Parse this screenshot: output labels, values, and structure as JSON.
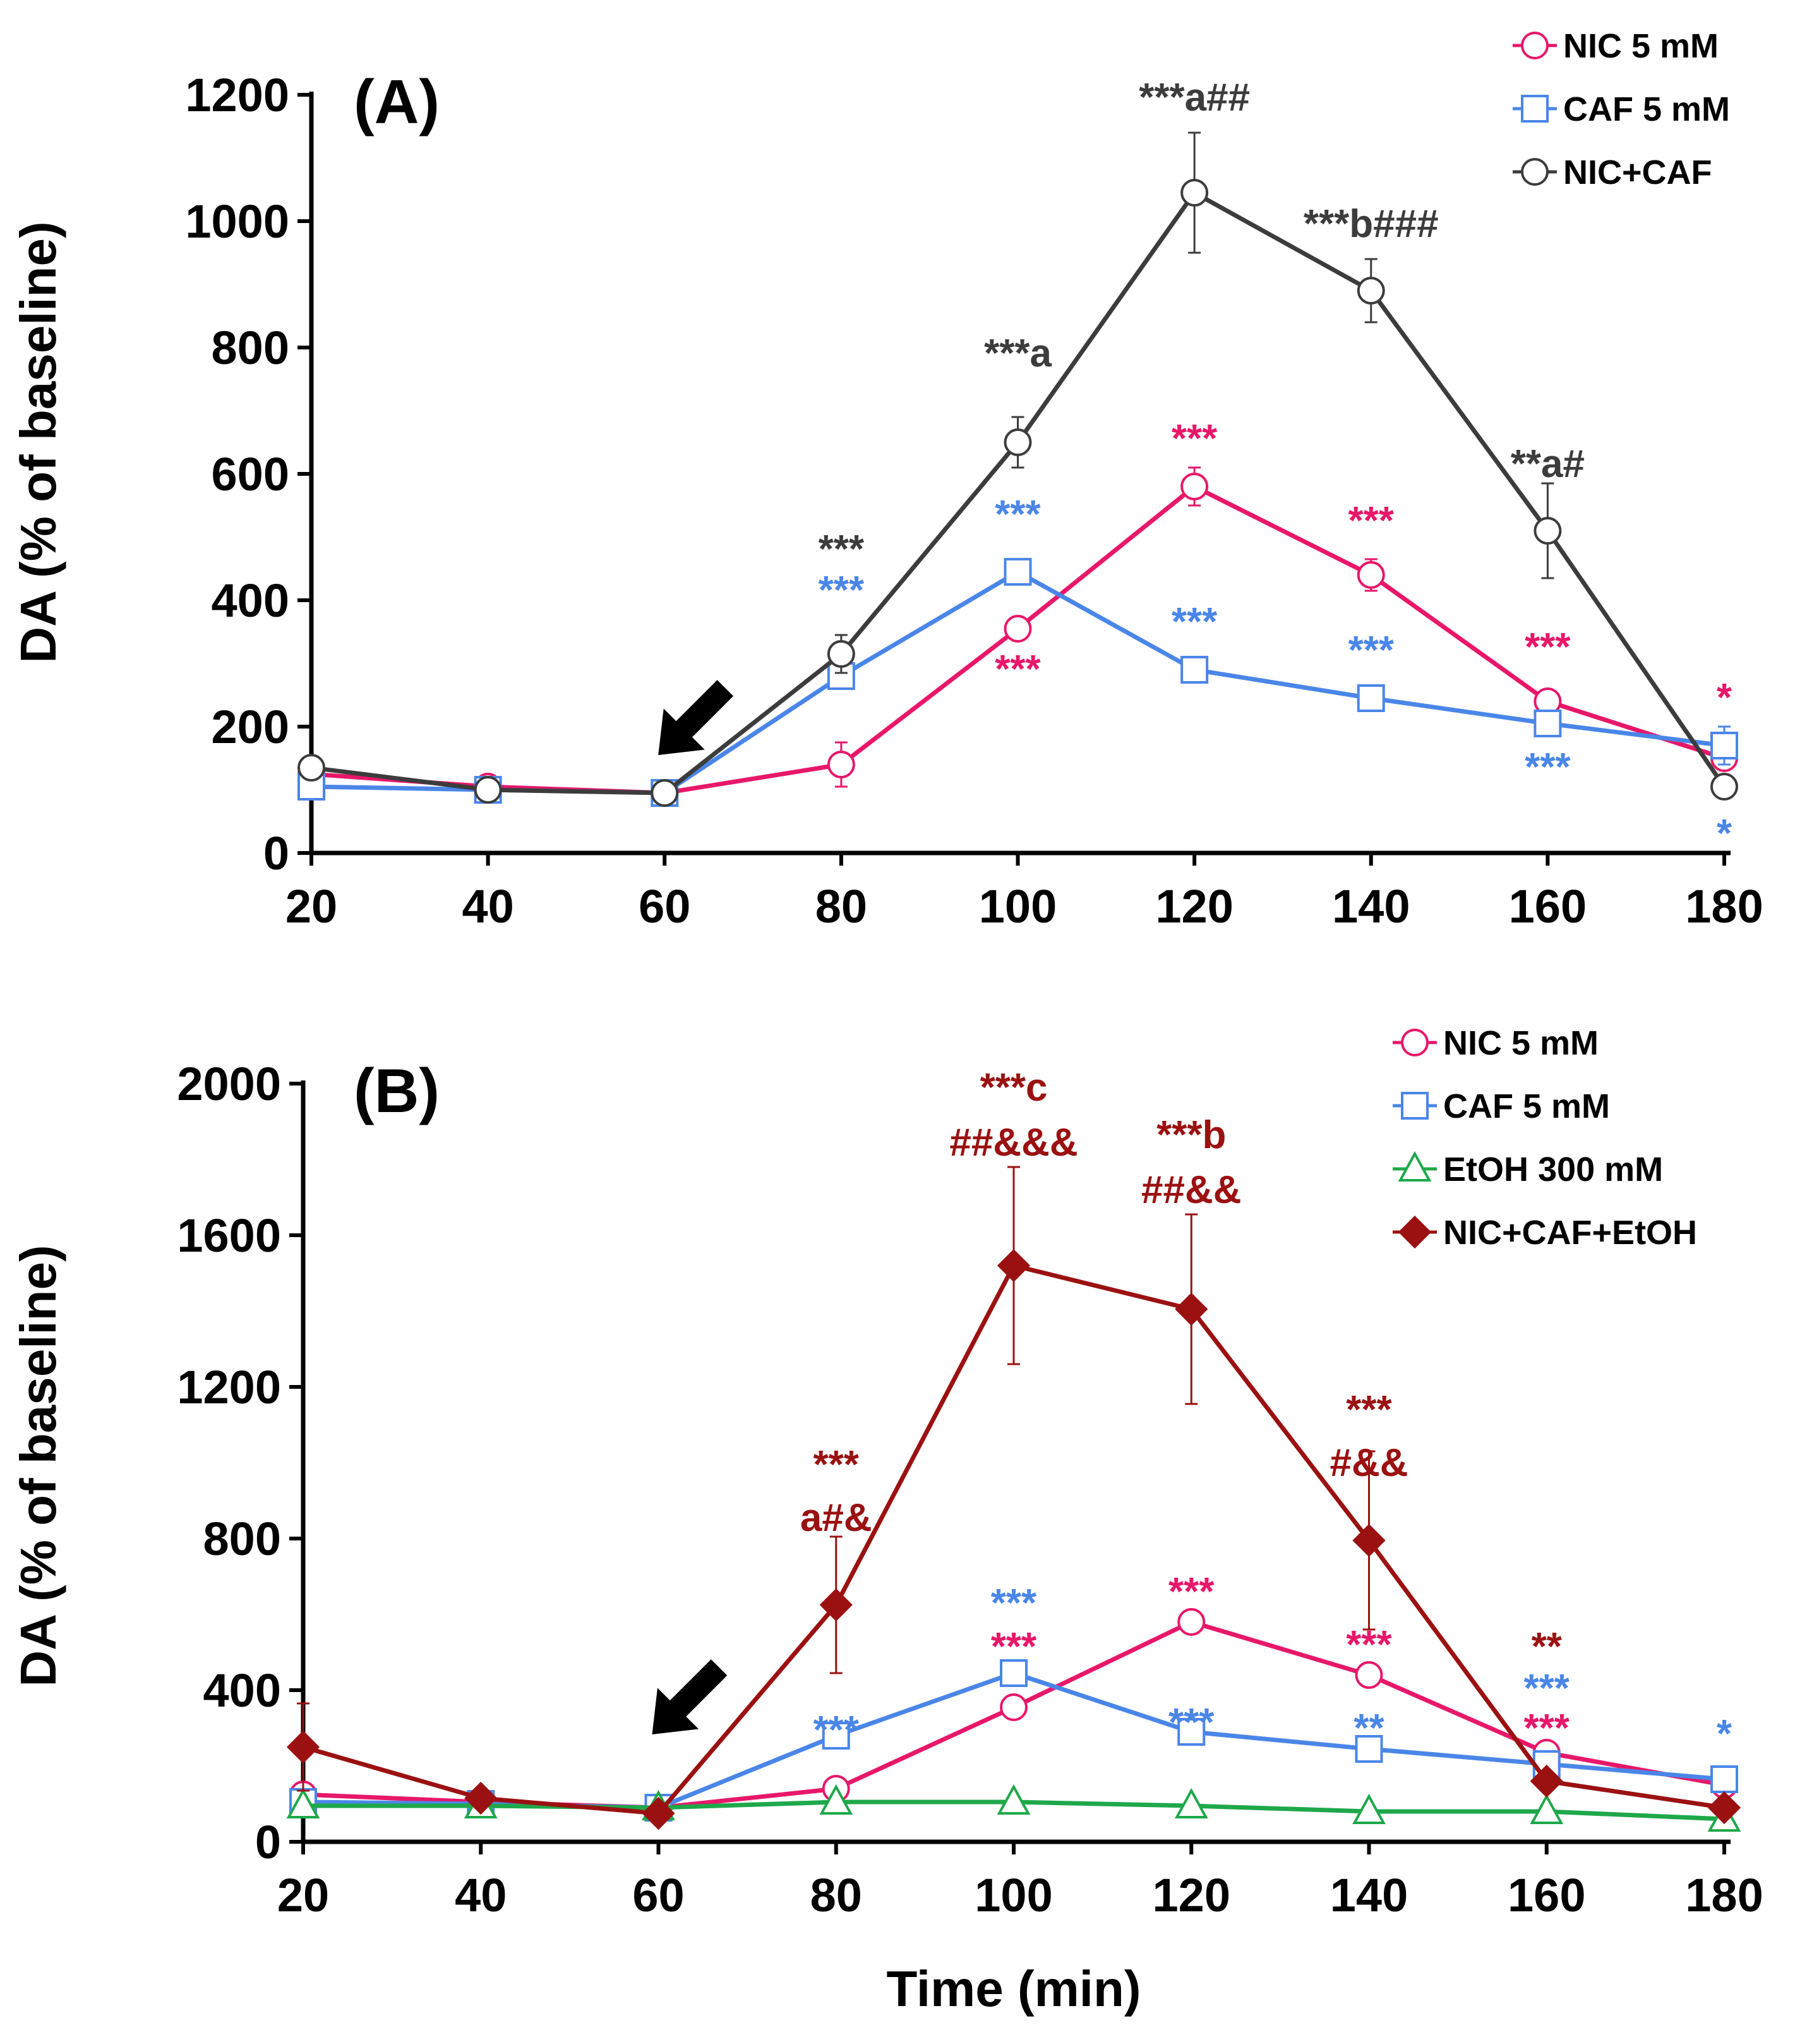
{
  "chart_data": [
    {
      "type": "line",
      "panel_label": "(A)",
      "xlabel": "",
      "ylabel": "DA (% of baseline)",
      "x": [
        20,
        40,
        60,
        80,
        100,
        120,
        140,
        160,
        180
      ],
      "xticks": [
        "20",
        "40",
        "60",
        "80",
        "100",
        "120",
        "140",
        "160",
        "180"
      ],
      "xlim": [
        20,
        180
      ],
      "yticks": [
        "0",
        "200",
        "400",
        "600",
        "800",
        "1000",
        "1200"
      ],
      "ylim": [
        0,
        1200
      ],
      "grid": false,
      "legend_position": "top-right",
      "arrow_at_x": 60,
      "series": [
        {
          "name": "NIC 5 mM",
          "color": "#e8176a",
          "marker": "circle",
          "values": [
            125,
            105,
            95,
            140,
            355,
            580,
            440,
            240,
            150
          ],
          "errors": [
            0,
            0,
            0,
            35,
            15,
            30,
            25,
            10,
            10
          ]
        },
        {
          "name": "CAF 5 mM",
          "color": "#4a86e8",
          "marker": "square",
          "values": [
            105,
            100,
            95,
            280,
            445,
            290,
            245,
            205,
            170
          ],
          "errors": [
            0,
            0,
            0,
            20,
            15,
            10,
            10,
            15,
            30
          ]
        },
        {
          "name": "NIC+CAF",
          "color": "#3c3c3c",
          "marker": "circle",
          "values": [
            135,
            100,
            95,
            315,
            650,
            1045,
            890,
            510,
            105
          ],
          "errors": [
            0,
            0,
            0,
            30,
            40,
            95,
            50,
            75,
            0
          ]
        }
      ],
      "annotations": [
        {
          "text": "***",
          "x": 80,
          "y": 460,
          "color": "#3c3c3c"
        },
        {
          "text": "***",
          "x": 80,
          "y": 395,
          "color": "#4a86e8"
        },
        {
          "text": "***a",
          "x": 100,
          "y": 770,
          "color": "#3c3c3c"
        },
        {
          "text": "***",
          "x": 100,
          "y": 515,
          "color": "#4a86e8"
        },
        {
          "text": "***",
          "x": 100,
          "y": 270,
          "color": "#e8176a"
        },
        {
          "text": "***a##",
          "x": 120,
          "y": 1175,
          "color": "#3c3c3c"
        },
        {
          "text": "***",
          "x": 120,
          "y": 635,
          "color": "#e8176a"
        },
        {
          "text": "***",
          "x": 120,
          "y": 345,
          "color": "#4a86e8"
        },
        {
          "text": "***b###",
          "x": 140,
          "y": 975,
          "color": "#3c3c3c"
        },
        {
          "text": "***",
          "x": 140,
          "y": 505,
          "color": "#e8176a"
        },
        {
          "text": "***",
          "x": 140,
          "y": 300,
          "color": "#4a86e8"
        },
        {
          "text": "**a#",
          "x": 160,
          "y": 595,
          "color": "#3c3c3c"
        },
        {
          "text": "***",
          "x": 160,
          "y": 305,
          "color": "#e8176a"
        },
        {
          "text": "***",
          "x": 160,
          "y": 115,
          "color": "#4a86e8"
        },
        {
          "text": "*",
          "x": 180,
          "y": 225,
          "color": "#e8176a"
        },
        {
          "text": "*",
          "x": 180,
          "y": 10,
          "color": "#4a86e8"
        }
      ]
    },
    {
      "type": "line",
      "panel_label": "(B)",
      "xlabel": "Time (min)",
      "ylabel": "DA (% of baseline)",
      "x": [
        20,
        40,
        60,
        80,
        100,
        120,
        140,
        160,
        180
      ],
      "xticks": [
        "20",
        "40",
        "60",
        "80",
        "100",
        "120",
        "140",
        "160",
        "180"
      ],
      "xlim": [
        20,
        180
      ],
      "yticks": [
        "0",
        "400",
        "800",
        "1200",
        "1600",
        "2000"
      ],
      "ylim": [
        0,
        2000
      ],
      "grid": false,
      "legend_position": "top-right",
      "arrow_at_x": 60,
      "series": [
        {
          "name": "NIC 5 mM",
          "color": "#e8176a",
          "marker": "circle",
          "values": [
            125,
            105,
            90,
            140,
            355,
            580,
            440,
            235,
            150
          ],
          "errors": [
            0,
            0,
            0,
            0,
            0,
            0,
            0,
            0,
            0
          ]
        },
        {
          "name": "CAF 5 mM",
          "color": "#4a86e8",
          "marker": "square",
          "values": [
            105,
            100,
            90,
            280,
            445,
            290,
            245,
            205,
            165
          ],
          "errors": [
            0,
            0,
            0,
            0,
            0,
            0,
            0,
            0,
            0
          ]
        },
        {
          "name": "EtOH 300 mM",
          "color": "#1ea84a",
          "marker": "triangle",
          "values": [
            95,
            95,
            90,
            105,
            105,
            95,
            80,
            80,
            60
          ],
          "errors": [
            0,
            0,
            0,
            0,
            0,
            0,
            0,
            0,
            0
          ]
        },
        {
          "name": "NIC+CAF+EtOH",
          "color": "#9b1111",
          "marker": "diamond",
          "values": [
            250,
            115,
            75,
            625,
            1520,
            1405,
            795,
            160,
            90
          ],
          "errors": [
            115,
            0,
            0,
            180,
            260,
            250,
            235,
            0,
            0
          ]
        }
      ],
      "annotations": [
        {
          "text": "***",
          "x": 80,
          "y": 960,
          "color": "#9b1111"
        },
        {
          "text": "a#&",
          "x": 80,
          "y": 820,
          "color": "#9b1111"
        },
        {
          "text": "***",
          "x": 80,
          "y": 260,
          "color": "#4a86e8"
        },
        {
          "text": "***c",
          "x": 100,
          "y": 1955,
          "color": "#9b1111"
        },
        {
          "text": "##&&&",
          "x": 100,
          "y": 1810,
          "color": "#9b1111"
        },
        {
          "text": "***",
          "x": 100,
          "y": 595,
          "color": "#4a86e8"
        },
        {
          "text": "***",
          "x": 100,
          "y": 480,
          "color": "#e8176a"
        },
        {
          "text": "***b",
          "x": 120,
          "y": 1830,
          "color": "#9b1111"
        },
        {
          "text": "##&&",
          "x": 120,
          "y": 1685,
          "color": "#9b1111"
        },
        {
          "text": "***",
          "x": 120,
          "y": 625,
          "color": "#e8176a"
        },
        {
          "text": "***",
          "x": 120,
          "y": 280,
          "color": "#4a86e8"
        },
        {
          "text": "***",
          "x": 140,
          "y": 1105,
          "color": "#9b1111"
        },
        {
          "text": "#&&",
          "x": 140,
          "y": 965,
          "color": "#9b1111"
        },
        {
          "text": "***",
          "x": 140,
          "y": 485,
          "color": "#e8176a"
        },
        {
          "text": "**",
          "x": 140,
          "y": 265,
          "color": "#4a86e8"
        },
        {
          "text": "**",
          "x": 160,
          "y": 480,
          "color": "#9b1111"
        },
        {
          "text": "***",
          "x": 160,
          "y": 370,
          "color": "#4a86e8"
        },
        {
          "text": "***",
          "x": 160,
          "y": 265,
          "color": "#e8176a"
        },
        {
          "text": "*",
          "x": 180,
          "y": 250,
          "color": "#4a86e8"
        }
      ]
    }
  ]
}
